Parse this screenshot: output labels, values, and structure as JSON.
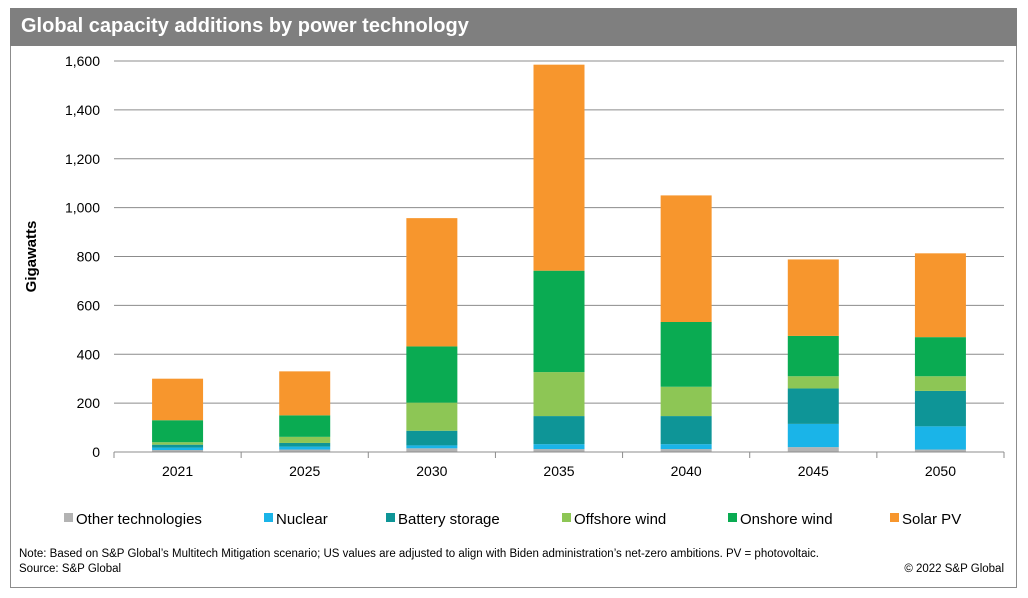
{
  "title": "Global capacity additions by power technology",
  "chart_data": {
    "type": "bar",
    "stacked": true,
    "title": "Global capacity additions by power technology",
    "ylabel": "Gigawatts",
    "xlabel": "",
    "ylim": [
      0,
      1600
    ],
    "yticks": [
      0,
      200,
      400,
      600,
      800,
      1000,
      1200,
      1400,
      1600
    ],
    "ytick_labels": [
      "0",
      "200",
      "400",
      "600",
      "800",
      "1,000",
      "1,200",
      "1,400",
      "1,600"
    ],
    "categories": [
      "2021",
      "2025",
      "2030",
      "2035",
      "2040",
      "2045",
      "2050"
    ],
    "series": [
      {
        "name": "Other technologies",
        "color": "#b3b3b3",
        "values": [
          8,
          10,
          15,
          12,
          12,
          20,
          10
        ]
      },
      {
        "name": "Nuclear",
        "color": "#1ab4e8",
        "values": [
          10,
          12,
          12,
          20,
          20,
          95,
          95
        ]
      },
      {
        "name": "Battery storage",
        "color": "#0e9597",
        "values": [
          12,
          15,
          60,
          115,
          115,
          145,
          145
        ]
      },
      {
        "name": "Offshore wind",
        "color": "#8dc655",
        "values": [
          10,
          25,
          115,
          180,
          120,
          50,
          60
        ]
      },
      {
        "name": "Onshore wind",
        "color": "#0aab52",
        "values": [
          90,
          88,
          230,
          415,
          265,
          165,
          160
        ]
      },
      {
        "name": "Solar PV",
        "color": "#f7962d",
        "values": [
          170,
          180,
          525,
          843,
          518,
          313,
          343
        ]
      }
    ],
    "grid": true,
    "legend": "bottom"
  },
  "footer": {
    "note": "Note: Based on S&P Global’s Multitech Mitigation scenario; US values are adjusted to align with Biden administration’s net-zero ambitions. PV = photovoltaic.",
    "source": "Source: S&P Global",
    "copyright": "© 2022 S&P Global"
  }
}
